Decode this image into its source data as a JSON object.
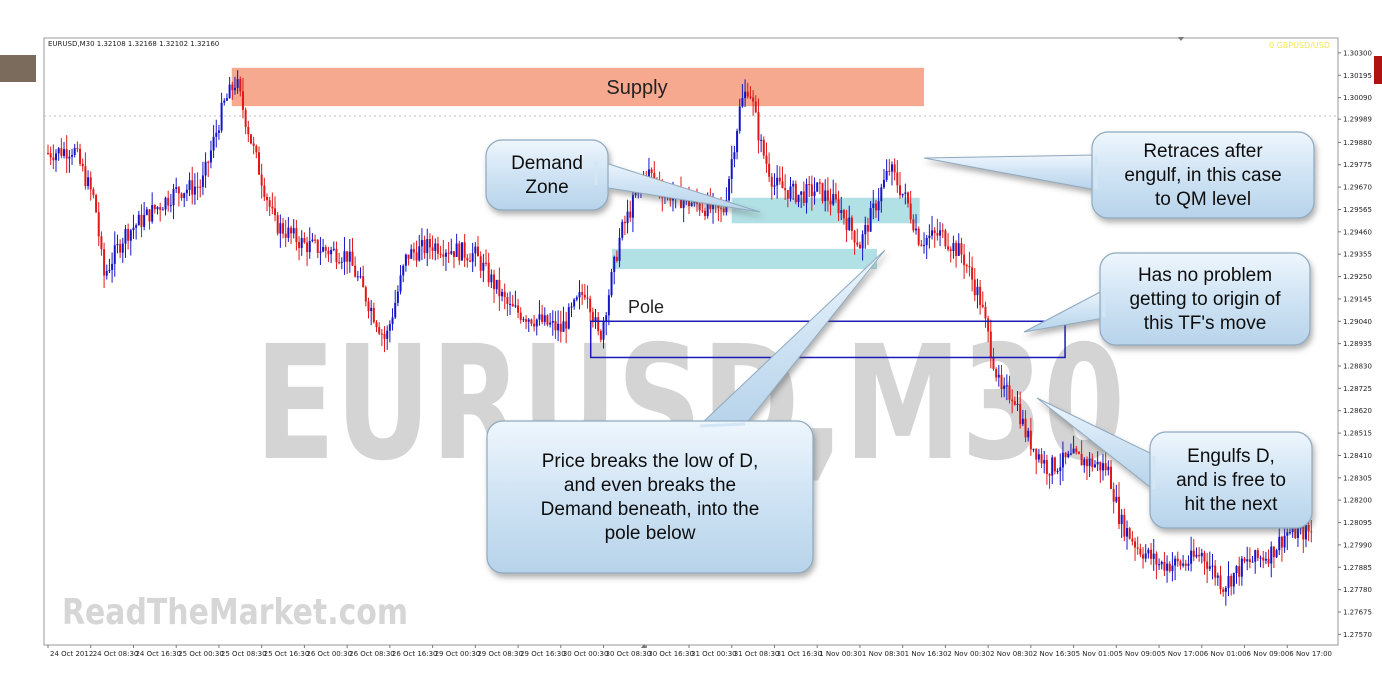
{
  "chart_data": {
    "type": "candlestick",
    "symbol_header": "EURUSD,M30  1.32108 1.32168 1.32102 1.32160",
    "corner_label": "0 GBPUSD/USD",
    "watermark": "EURUSD,M30",
    "site_watermark": "ReadTheMarket.com",
    "zone_label": "Supply",
    "pole_label": "Pole",
    "ylim": [
      1.2752,
      1.3037
    ],
    "y_ticks": [
      "1.30300",
      "1.30195",
      "1.30090",
      "1.29989",
      "1.29880",
      "1.29775",
      "1.29670",
      "1.29565",
      "1.29460",
      "1.29355",
      "1.29250",
      "1.29145",
      "1.29040",
      "1.28935",
      "1.28830",
      "1.28725",
      "1.28620",
      "1.28515",
      "1.28410",
      "1.28305",
      "1.28200",
      "1.28095",
      "1.27990",
      "1.27885",
      "1.27780",
      "1.27675",
      "1.27570"
    ],
    "x_ticks": [
      "24 Oct 2012",
      "24 Oct 08:30",
      "24 Oct 16:30",
      "25 Oct 00:30",
      "25 Oct 08:30",
      "25 Oct 16:30",
      "26 Oct 00:30",
      "26 Oct 08:30",
      "26 Oct 16:30",
      "29 Oct 00:30",
      "29 Oct 08:30",
      "29 Oct 16:30",
      "30 Oct 00:30",
      "30 Oct 08:30",
      "30 Oct 16:30",
      "31 Oct 00:30",
      "31 Oct 08:30",
      "31 Oct 16:30",
      "1 Nov 00:30",
      "1 Nov 08:30",
      "1 Nov 16:30",
      "2 Nov 00:30",
      "2 Nov 08:30",
      "2 Nov 16:30",
      "5 Nov 01:00",
      "5 Nov 09:00",
      "5 Nov 17:00",
      "6 Nov 01:00",
      "6 Nov 09:00",
      "6 Nov 17:00"
    ],
    "price_path": [
      [
        0.0,
        1.2983
      ],
      [
        0.6,
        1.2985
      ],
      [
        1.1,
        1.296
      ],
      [
        1.3,
        1.2925
      ],
      [
        1.8,
        1.2945
      ],
      [
        2.4,
        1.2955
      ],
      [
        3.0,
        1.2965
      ],
      [
        3.6,
        1.2968
      ],
      [
        4.1,
        1.3005
      ],
      [
        4.4,
        1.3017
      ],
      [
        4.8,
        1.2985
      ],
      [
        5.3,
        1.295
      ],
      [
        6.0,
        1.294
      ],
      [
        7.0,
        1.2935
      ],
      [
        7.9,
        1.2895
      ],
      [
        8.4,
        1.2935
      ],
      [
        9.0,
        1.294
      ],
      [
        10.0,
        1.2935
      ],
      [
        10.8,
        1.291
      ],
      [
        11.4,
        1.2905
      ],
      [
        12.0,
        1.29
      ],
      [
        12.6,
        1.292
      ],
      [
        12.9,
        1.2895
      ],
      [
        13.4,
        1.2945
      ],
      [
        14.0,
        1.2975
      ],
      [
        14.4,
        1.2965
      ],
      [
        15.0,
        1.296
      ],
      [
        15.8,
        1.2955
      ],
      [
        16.2,
        1.3005
      ],
      [
        16.4,
        1.3015
      ],
      [
        16.7,
        1.2985
      ],
      [
        17.0,
        1.2968
      ],
      [
        17.6,
        1.2963
      ],
      [
        18.0,
        1.2966
      ],
      [
        18.5,
        1.2958
      ],
      [
        19.0,
        1.294
      ],
      [
        19.7,
        1.2976
      ],
      [
        20.1,
        1.296
      ],
      [
        20.4,
        1.2942
      ],
      [
        20.9,
        1.2945
      ],
      [
        21.4,
        1.2935
      ],
      [
        21.8,
        1.2915
      ],
      [
        22.3,
        1.287
      ],
      [
        22.6,
        1.287
      ],
      [
        22.9,
        1.285
      ],
      [
        23.4,
        1.2835
      ],
      [
        24.0,
        1.284
      ],
      [
        24.8,
        1.2835
      ],
      [
        25.1,
        1.281
      ],
      [
        25.5,
        1.2798
      ],
      [
        26.0,
        1.279
      ],
      [
        26.6,
        1.279
      ],
      [
        27.0,
        1.2795
      ],
      [
        27.5,
        1.278
      ],
      [
        28.0,
        1.279
      ],
      [
        28.6,
        1.2795
      ],
      [
        29.0,
        1.2805
      ],
      [
        29.6,
        1.2805
      ]
    ],
    "supply_zone": {
      "x": [
        4.3,
        20.5
      ],
      "y": [
        1.3005,
        1.3023
      ]
    },
    "demand_zones": [
      {
        "x": [
          16.0,
          20.4
        ],
        "y": [
          1.295,
          1.2962
        ]
      },
      {
        "x": [
          13.2,
          19.4
        ],
        "y": [
          1.29285,
          1.2938
        ]
      }
    ],
    "origin_box": {
      "x": [
        12.7,
        23.8
      ],
      "y": [
        1.2887,
        1.2904
      ]
    },
    "callouts": [
      {
        "name": "demand-zone-callout",
        "lines": [
          "Demand",
          "Zone"
        ]
      },
      {
        "name": "retraces-callout",
        "lines": [
          "Retraces after",
          "engulf, in this case",
          "to QM level"
        ]
      },
      {
        "name": "no-problem-callout",
        "lines": [
          "Has no problem",
          "getting to origin of",
          "this TF's move"
        ]
      },
      {
        "name": "price-breaks-callout",
        "lines": [
          "Price breaks the low of D,",
          "and even breaks the",
          "Demand beneath, into the",
          "pole below"
        ]
      },
      {
        "name": "engulfs-callout",
        "lines": [
          "Engulfs D,",
          "and is free to",
          "hit the next"
        ]
      }
    ],
    "colors": {
      "up_candle": "#1515c8",
      "down_candle": "#e01818",
      "supply": "#f5a285",
      "demand": "#a8dde2",
      "origin_box": "#1a1ab8",
      "callout_fill": "#d3e6f5",
      "watermark": "#d4d4d4"
    }
  }
}
